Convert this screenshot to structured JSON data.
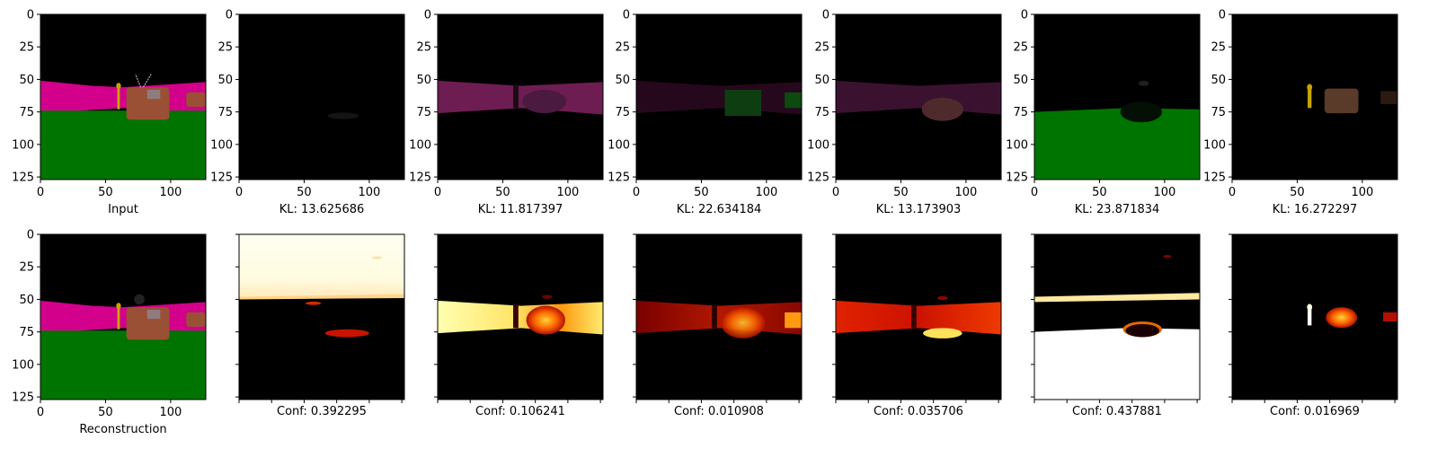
{
  "chart_data": {
    "type": "image_grid",
    "rows": 2,
    "columns": 7,
    "image_extent": {
      "x": [
        0,
        127
      ],
      "y": [
        0,
        127
      ]
    },
    "ticks": [
      0,
      25,
      50,
      75,
      100,
      125
    ],
    "x_tick_labels": [
      "0",
      "50",
      "100"
    ],
    "y_tick_labels": [
      "0",
      "25",
      "50",
      "75",
      "100",
      "125"
    ],
    "top_row": [
      {
        "label": "Input",
        "kind": "scene_rgb"
      },
      {
        "label": "KL: 13.625686",
        "kind": "rgb_dark",
        "kl": 13.625686
      },
      {
        "label": "KL: 11.817397",
        "kind": "rgb_magenta_band",
        "kl": 11.817397
      },
      {
        "label": "KL: 22.634184",
        "kind": "rgb_dim_band_green",
        "kl": 22.634184
      },
      {
        "label": "KL: 13.173903",
        "kind": "rgb_dim_band",
        "kl": 13.173903
      },
      {
        "label": "KL: 23.871834",
        "kind": "rgb_green_ground",
        "kl": 23.871834
      },
      {
        "label": "KL: 16.272297",
        "kind": "rgb_object_only",
        "kl": 16.272297
      }
    ],
    "bottom_row": [
      {
        "label": "Reconstruction",
        "kind": "scene_rgb"
      },
      {
        "label": "Conf: 0.392295",
        "kind": "heat_sky",
        "conf": 0.392295
      },
      {
        "label": "Conf: 0.106241",
        "kind": "heat_band_bright",
        "conf": 0.106241
      },
      {
        "label": "Conf: 0.010908",
        "kind": "heat_band_dark",
        "conf": 0.010908
      },
      {
        "label": "Conf: 0.035706",
        "kind": "heat_band_mid",
        "conf": 0.035706
      },
      {
        "label": "Conf: 0.437881",
        "kind": "heat_ground",
        "conf": 0.437881
      },
      {
        "label": "Conf: 0.016969",
        "kind": "heat_object",
        "conf": 0.016969
      }
    ],
    "colormap": "hot",
    "colors": {
      "magenta": "#d3008b",
      "green": "#007400",
      "sky": "#000000",
      "object": "#9a5035",
      "pole": "#c9a400"
    }
  }
}
